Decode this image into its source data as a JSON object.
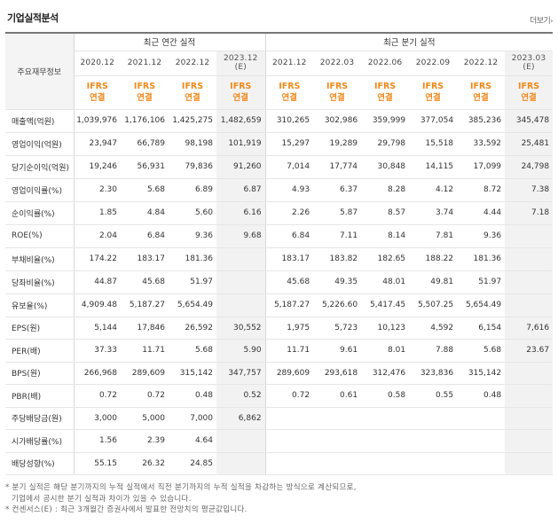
{
  "header": {
    "title": "기업실적분석",
    "more_label": "더보기",
    "more_arrow": "›"
  },
  "table": {
    "corner_label": "주요재무정보",
    "annual_group": "최근 연간 실적",
    "quarter_group": "최근 분기 실적",
    "ifrs_top": "IFRS",
    "ifrs_bottom": "연결",
    "estimate_mark": "(E)",
    "periods": [
      {
        "date": "2020.12",
        "estimate": false
      },
      {
        "date": "2021.12",
        "estimate": false
      },
      {
        "date": "2022.12",
        "estimate": false
      },
      {
        "date": "2023.12",
        "estimate": true
      },
      {
        "date": "2021.12",
        "estimate": false
      },
      {
        "date": "2022.03",
        "estimate": false
      },
      {
        "date": "2022.06",
        "estimate": false
      },
      {
        "date": "2022.09",
        "estimate": false
      },
      {
        "date": "2022.12",
        "estimate": false
      },
      {
        "date": "2023.03",
        "estimate": true
      }
    ],
    "rows": [
      {
        "label": "매출액(억원)",
        "values": [
          "1,039,976",
          "1,176,106",
          "1,425,275",
          "1,482,659",
          "310,265",
          "302,986",
          "359,999",
          "377,054",
          "385,236",
          "345,478"
        ]
      },
      {
        "label": "영업이익(억원)",
        "values": [
          "23,947",
          "66,789",
          "98,198",
          "101,919",
          "15,297",
          "19,289",
          "29,798",
          "15,518",
          "33,592",
          "25,481"
        ]
      },
      {
        "label": "당기순이익(억원)",
        "values": [
          "19,246",
          "56,931",
          "79,836",
          "91,260",
          "7,014",
          "17,774",
          "30,848",
          "14,115",
          "17,099",
          "24,798"
        ]
      },
      {
        "label": "영업이익률(%)",
        "values": [
          "2.30",
          "5.68",
          "6.89",
          "6.87",
          "4.93",
          "6.37",
          "8.28",
          "4.12",
          "8.72",
          "7.38"
        ]
      },
      {
        "label": "순이익률(%)",
        "values": [
          "1.85",
          "4.84",
          "5.60",
          "6.16",
          "2.26",
          "5.87",
          "8.57",
          "3.74",
          "4.44",
          "7.18"
        ]
      },
      {
        "label": "ROE(%)",
        "values": [
          "2.04",
          "6.84",
          "9.36",
          "9.68",
          "6.84",
          "7.11",
          "8.14",
          "7.81",
          "9.36",
          ""
        ]
      },
      {
        "label": "부채비율(%)",
        "values": [
          "174.22",
          "183.17",
          "181.36",
          "",
          "183.17",
          "183.82",
          "182.65",
          "188.22",
          "181.36",
          ""
        ]
      },
      {
        "label": "당좌비율(%)",
        "values": [
          "44.87",
          "45.68",
          "51.97",
          "",
          "45.68",
          "49.35",
          "48.01",
          "49.81",
          "51.97",
          ""
        ]
      },
      {
        "label": "유보율(%)",
        "values": [
          "4,909.48",
          "5,187.27",
          "5,654.49",
          "",
          "5,187.27",
          "5,226.60",
          "5,417.45",
          "5,507.25",
          "5,654.49",
          ""
        ]
      },
      {
        "label": "EPS(원)",
        "values": [
          "5,144",
          "17,846",
          "26,592",
          "30,552",
          "1,975",
          "5,723",
          "10,123",
          "4,592",
          "6,154",
          "7,616"
        ]
      },
      {
        "label": "PER(배)",
        "values": [
          "37.33",
          "11.71",
          "5.68",
          "5.90",
          "11.71",
          "9.61",
          "8.01",
          "7.88",
          "5.68",
          "23.67"
        ]
      },
      {
        "label": "BPS(원)",
        "values": [
          "266,968",
          "289,609",
          "315,142",
          "347,757",
          "289,609",
          "293,618",
          "312,476",
          "323,836",
          "315,142",
          ""
        ]
      },
      {
        "label": "PBR(배)",
        "values": [
          "0.72",
          "0.72",
          "0.48",
          "0.52",
          "0.72",
          "0.61",
          "0.58",
          "0.55",
          "0.48",
          ""
        ]
      },
      {
        "label": "주당배당금(원)",
        "values": [
          "3,000",
          "5,000",
          "7,000",
          "6,862",
          "",
          "",
          "",
          "",
          "",
          ""
        ]
      },
      {
        "label": "시가배당률(%)",
        "values": [
          "1.56",
          "2.39",
          "4.64",
          "",
          "",
          "",
          "",
          "",
          "",
          ""
        ]
      },
      {
        "label": "배당성향(%)",
        "values": [
          "55.15",
          "26.32",
          "24.85",
          "",
          "",
          "",
          "",
          "",
          "",
          ""
        ]
      }
    ]
  },
  "notes": {
    "line1": "* 분기 실적은 해당 분기까지의 누적 실적에서 직전 분기까지의 누적 실적을 차감하는 방식으로 계산되므로,",
    "line2": "기업에서 공시한 분기 실적과 차이가 있을 수 있습니다.",
    "line3": "* 컨센서스(E) : 최근 3개월간 증권사에서 발표한 전망치의 평균값입니다."
  },
  "colors": {
    "ifrs": "#f08a1c",
    "estimate_bg": "#f2f2f2",
    "top_border": "#777777"
  }
}
